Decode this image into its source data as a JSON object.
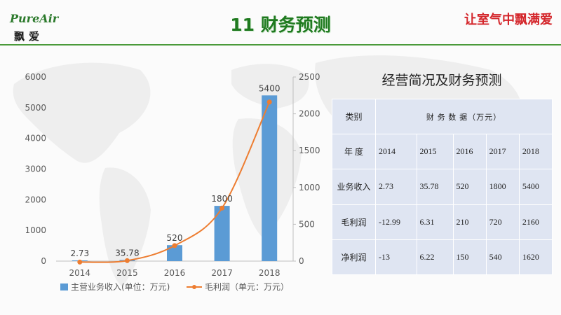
{
  "header": {
    "logo_text": "PureAir",
    "logo_sub": "飘爱",
    "title": "11 财务预测",
    "slogan": "让室气中飘满爱"
  },
  "colors": {
    "bar": "#5b9bd5",
    "line": "#ed7d31",
    "title_green": "#1f7a1f",
    "slogan_red": "#d4262b",
    "table_bg": "#dfe5f2"
  },
  "chart_data": {
    "type": "bar",
    "categories": [
      "2014",
      "2015",
      "2016",
      "2017",
      "2018"
    ],
    "series": [
      {
        "name": "主营业务收入(单位：万元)",
        "kind": "bar",
        "axis": "left",
        "values": [
          2.73,
          35.78,
          520,
          1800,
          5400
        ],
        "data_labels": [
          "2.73",
          "35.78",
          "520",
          "1800",
          "5400"
        ]
      },
      {
        "name": "毛利润（单元：万元）",
        "kind": "line",
        "axis": "right",
        "values": [
          -12.99,
          6.31,
          210,
          720,
          2160
        ]
      }
    ],
    "y_left": {
      "min": 0,
      "max": 6000,
      "ticks": [
        "0",
        "1000",
        "2000",
        "3000",
        "4000",
        "5000",
        "6000"
      ]
    },
    "y_right": {
      "min": 0,
      "max": 2500,
      "ticks": [
        "0",
        "500",
        "1000",
        "1500",
        "2000",
        "2500"
      ]
    },
    "legend_position": "bottom",
    "grid": false
  },
  "table": {
    "title": "经营简况及财务预测",
    "header_label": "类别",
    "unit_label": "财 务 数 据（万元）",
    "year_label": "年 度",
    "years": [
      "2014",
      "2015",
      "2016",
      "2017",
      "2018"
    ],
    "rows": [
      {
        "label": "业务收入",
        "values": [
          "2.73",
          "35.78",
          "520",
          "1800",
          "5400"
        ]
      },
      {
        "label": "毛利润",
        "values": [
          "-12.99",
          "6.31",
          "210",
          "720",
          "2160"
        ]
      },
      {
        "label": "净利润",
        "values": [
          "-13",
          "6.22",
          "150",
          "540",
          "1620"
        ]
      }
    ]
  }
}
